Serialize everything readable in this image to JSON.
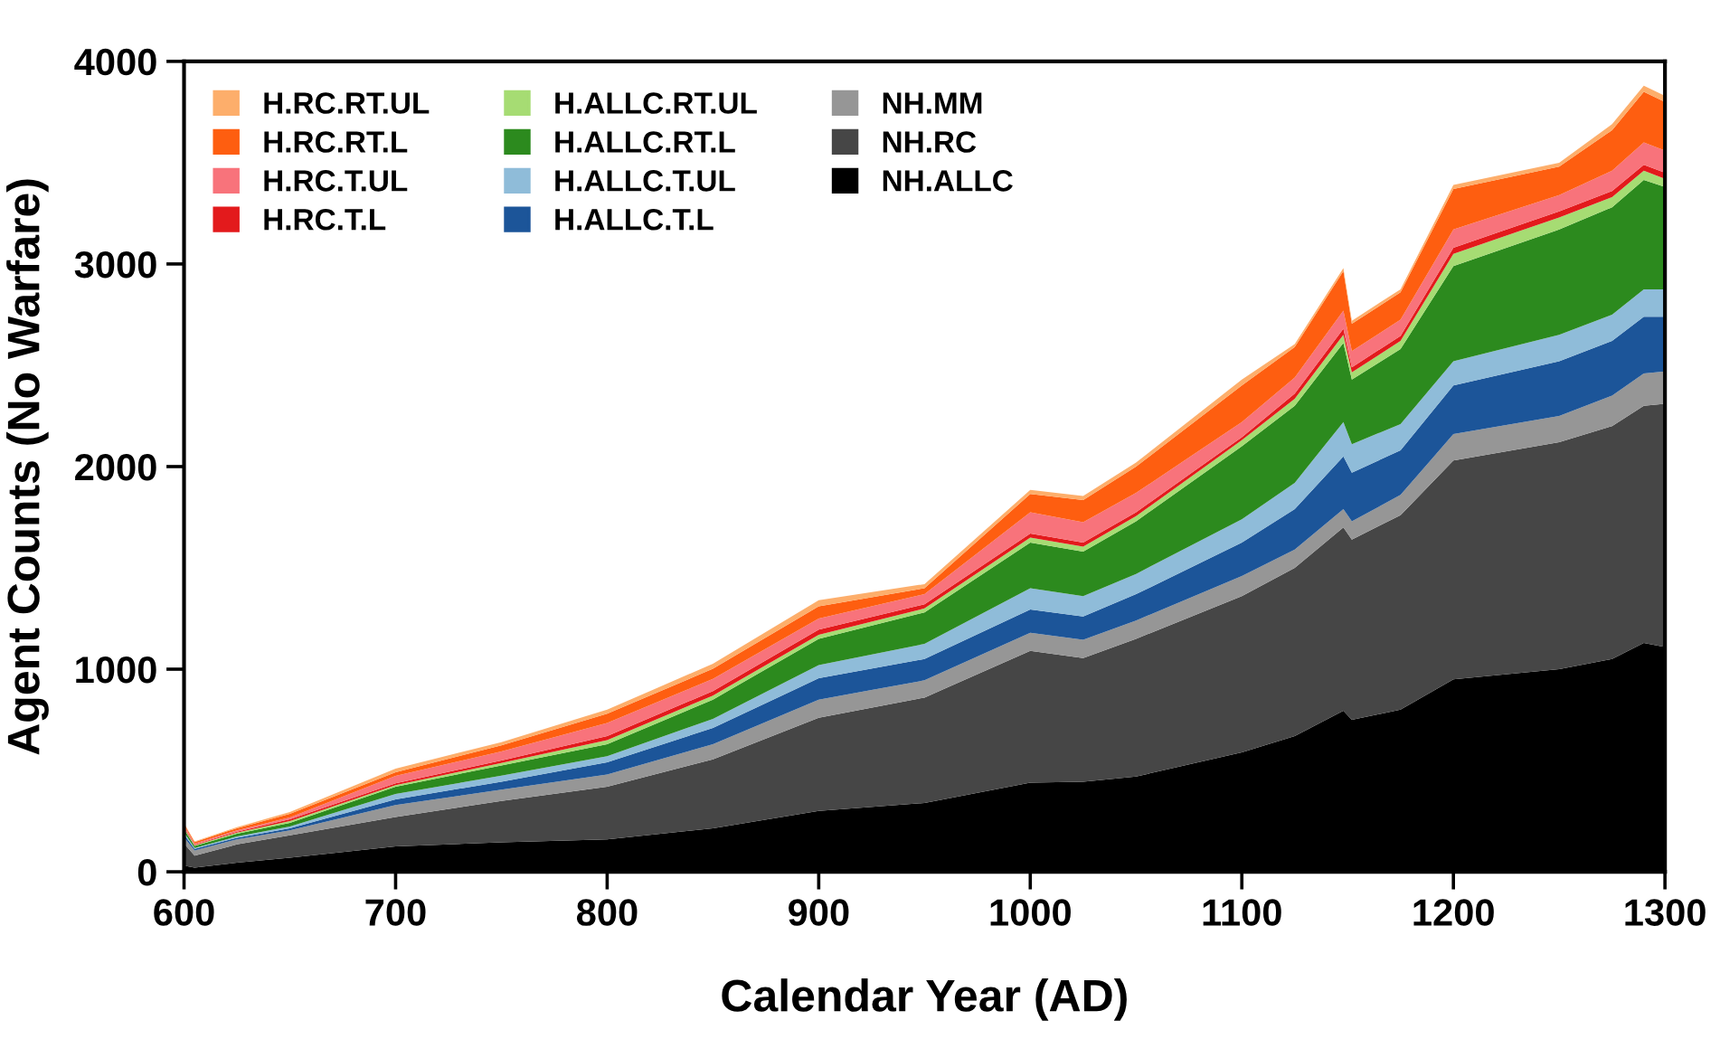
{
  "chart_data": {
    "type": "area",
    "stacked": true,
    "xlabel": "Calendar Year (AD)",
    "ylabel": "Agent Counts (No Warfare)",
    "x": [
      600,
      605,
      625,
      650,
      700,
      750,
      800,
      850,
      900,
      950,
      1000,
      1025,
      1050,
      1100,
      1125,
      1148,
      1152,
      1175,
      1200,
      1250,
      1275,
      1290,
      1300
    ],
    "xlim": [
      600,
      1300
    ],
    "xticks": [
      600,
      700,
      800,
      900,
      1000,
      1100,
      1200,
      1300
    ],
    "ylim": [
      0,
      4000
    ],
    "yticks": [
      0,
      1000,
      2000,
      3000,
      4000
    ],
    "grid": false,
    "legend": "top left",
    "series": [
      {
        "name": "NH.ALLC",
        "color": "#000000",
        "values": [
          30,
          20,
          45,
          70,
          125,
          145,
          160,
          215,
          300,
          340,
          440,
          445,
          470,
          590,
          670,
          795,
          750,
          800,
          950,
          1000,
          1050,
          1130,
          1110
        ]
      },
      {
        "name": "NH.RC",
        "color": "#464646",
        "values": [
          110,
          60,
          90,
          110,
          145,
          205,
          260,
          340,
          460,
          520,
          650,
          610,
          680,
          770,
          830,
          905,
          890,
          960,
          1080,
          1120,
          1150,
          1170,
          1200
        ]
      },
      {
        "name": "NH.MM",
        "color": "#969696",
        "values": [
          30,
          25,
          25,
          25,
          60,
          55,
          60,
          75,
          90,
          85,
          90,
          90,
          90,
          100,
          90,
          90,
          90,
          100,
          130,
          130,
          150,
          160,
          160
        ]
      },
      {
        "name": "H.ALLC.T.L",
        "color": "#1c5599",
        "values": [
          15,
          8,
          8,
          10,
          27,
          40,
          60,
          80,
          105,
          105,
          115,
          115,
          130,
          165,
          200,
          260,
          240,
          220,
          240,
          270,
          270,
          280,
          270
        ]
      },
      {
        "name": "H.ALLC.T.UL",
        "color": "#8fbcd9",
        "values": [
          10,
          5,
          6,
          8,
          27,
          30,
          30,
          45,
          65,
          75,
          105,
          100,
          100,
          115,
          130,
          170,
          140,
          130,
          120,
          130,
          130,
          135,
          135
        ]
      },
      {
        "name": "H.ALLC.RT.L",
        "color": "#2c8a1e",
        "values": [
          15,
          10,
          14,
          18,
          36,
          50,
          60,
          95,
          130,
          155,
          225,
          220,
          260,
          360,
          380,
          390,
          320,
          370,
          470,
          520,
          530,
          540,
          505
        ]
      },
      {
        "name": "H.ALLC.RT.UL",
        "color": "#a6dc73",
        "values": [
          5,
          3,
          5,
          9,
          8,
          12,
          20,
          20,
          20,
          20,
          25,
          25,
          25,
          30,
          35,
          40,
          35,
          40,
          60,
          60,
          50,
          45,
          40
        ]
      },
      {
        "name": "H.RC.T.L",
        "color": "#e31a1c",
        "values": [
          5,
          3,
          5,
          9,
          9,
          12,
          20,
          22,
          25,
          20,
          20,
          20,
          20,
          15,
          25,
          30,
          25,
          25,
          30,
          30,
          30,
          30,
          30
        ]
      },
      {
        "name": "H.RC.T.UL",
        "color": "#f8737b",
        "values": [
          10,
          5,
          7,
          9,
          36,
          45,
          65,
          60,
          55,
          50,
          105,
          100,
          95,
          75,
          80,
          90,
          80,
          80,
          90,
          80,
          100,
          110,
          110
        ]
      },
      {
        "name": "H.RC.RT.L",
        "color": "#fe5e10",
        "values": [
          7,
          8,
          10,
          18,
          18,
          30,
          45,
          50,
          60,
          30,
          90,
          110,
          130,
          180,
          150,
          195,
          135,
          135,
          200,
          140,
          200,
          250,
          240
        ]
      },
      {
        "name": "H.RC.RT.UL",
        "color": "#fdae6b",
        "values": [
          3,
          3,
          5,
          9,
          18,
          16,
          20,
          25,
          30,
          20,
          20,
          20,
          20,
          30,
          15,
          15,
          15,
          15,
          20,
          20,
          30,
          30,
          30
        ]
      }
    ]
  }
}
